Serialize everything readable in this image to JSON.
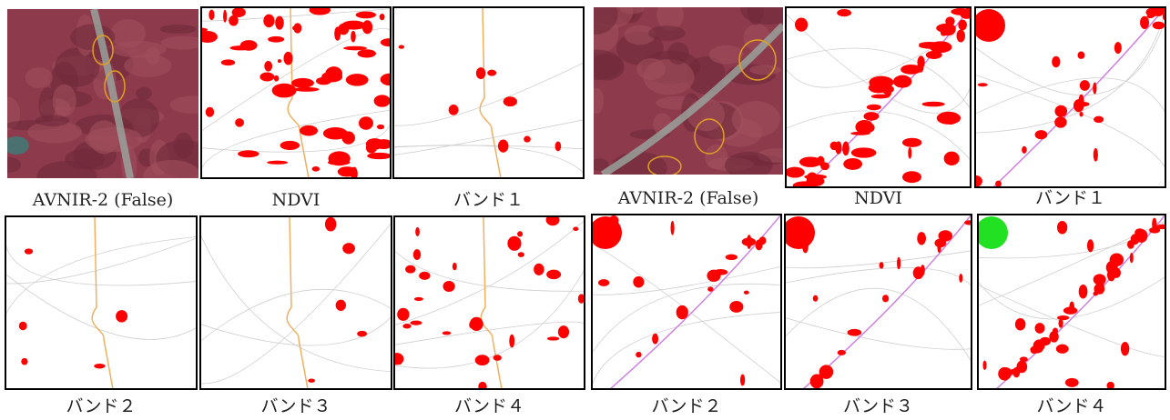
{
  "figure": {
    "panels": [
      {
        "caption": "AVNIR-2 (False)"
      },
      {
        "caption": "NDVI"
      },
      {
        "caption": "バンド１"
      },
      {
        "caption": "バンド２"
      },
      {
        "caption": "バンド３"
      },
      {
        "caption": "バンド４"
      },
      {
        "caption": "AVNIR-2 (False)"
      },
      {
        "caption": "NDVI"
      },
      {
        "caption": "バンド１"
      },
      {
        "caption": "バンド２"
      },
      {
        "caption": "バンド３"
      },
      {
        "caption": "バンド４"
      }
    ]
  }
}
